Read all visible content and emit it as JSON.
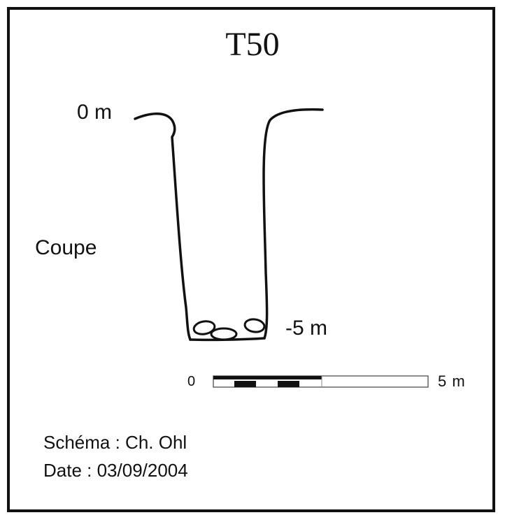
{
  "title": "T50",
  "depth_top": "0 m",
  "section_label": "Coupe",
  "depth_bottom": "-5 m",
  "scale": {
    "start_label": "0",
    "end_label": "5 m"
  },
  "author": "Schéma : Ch. Ohl",
  "date": "Date : 03/09/2004",
  "colors": {
    "ink": "#111111",
    "background": "#ffffff"
  }
}
